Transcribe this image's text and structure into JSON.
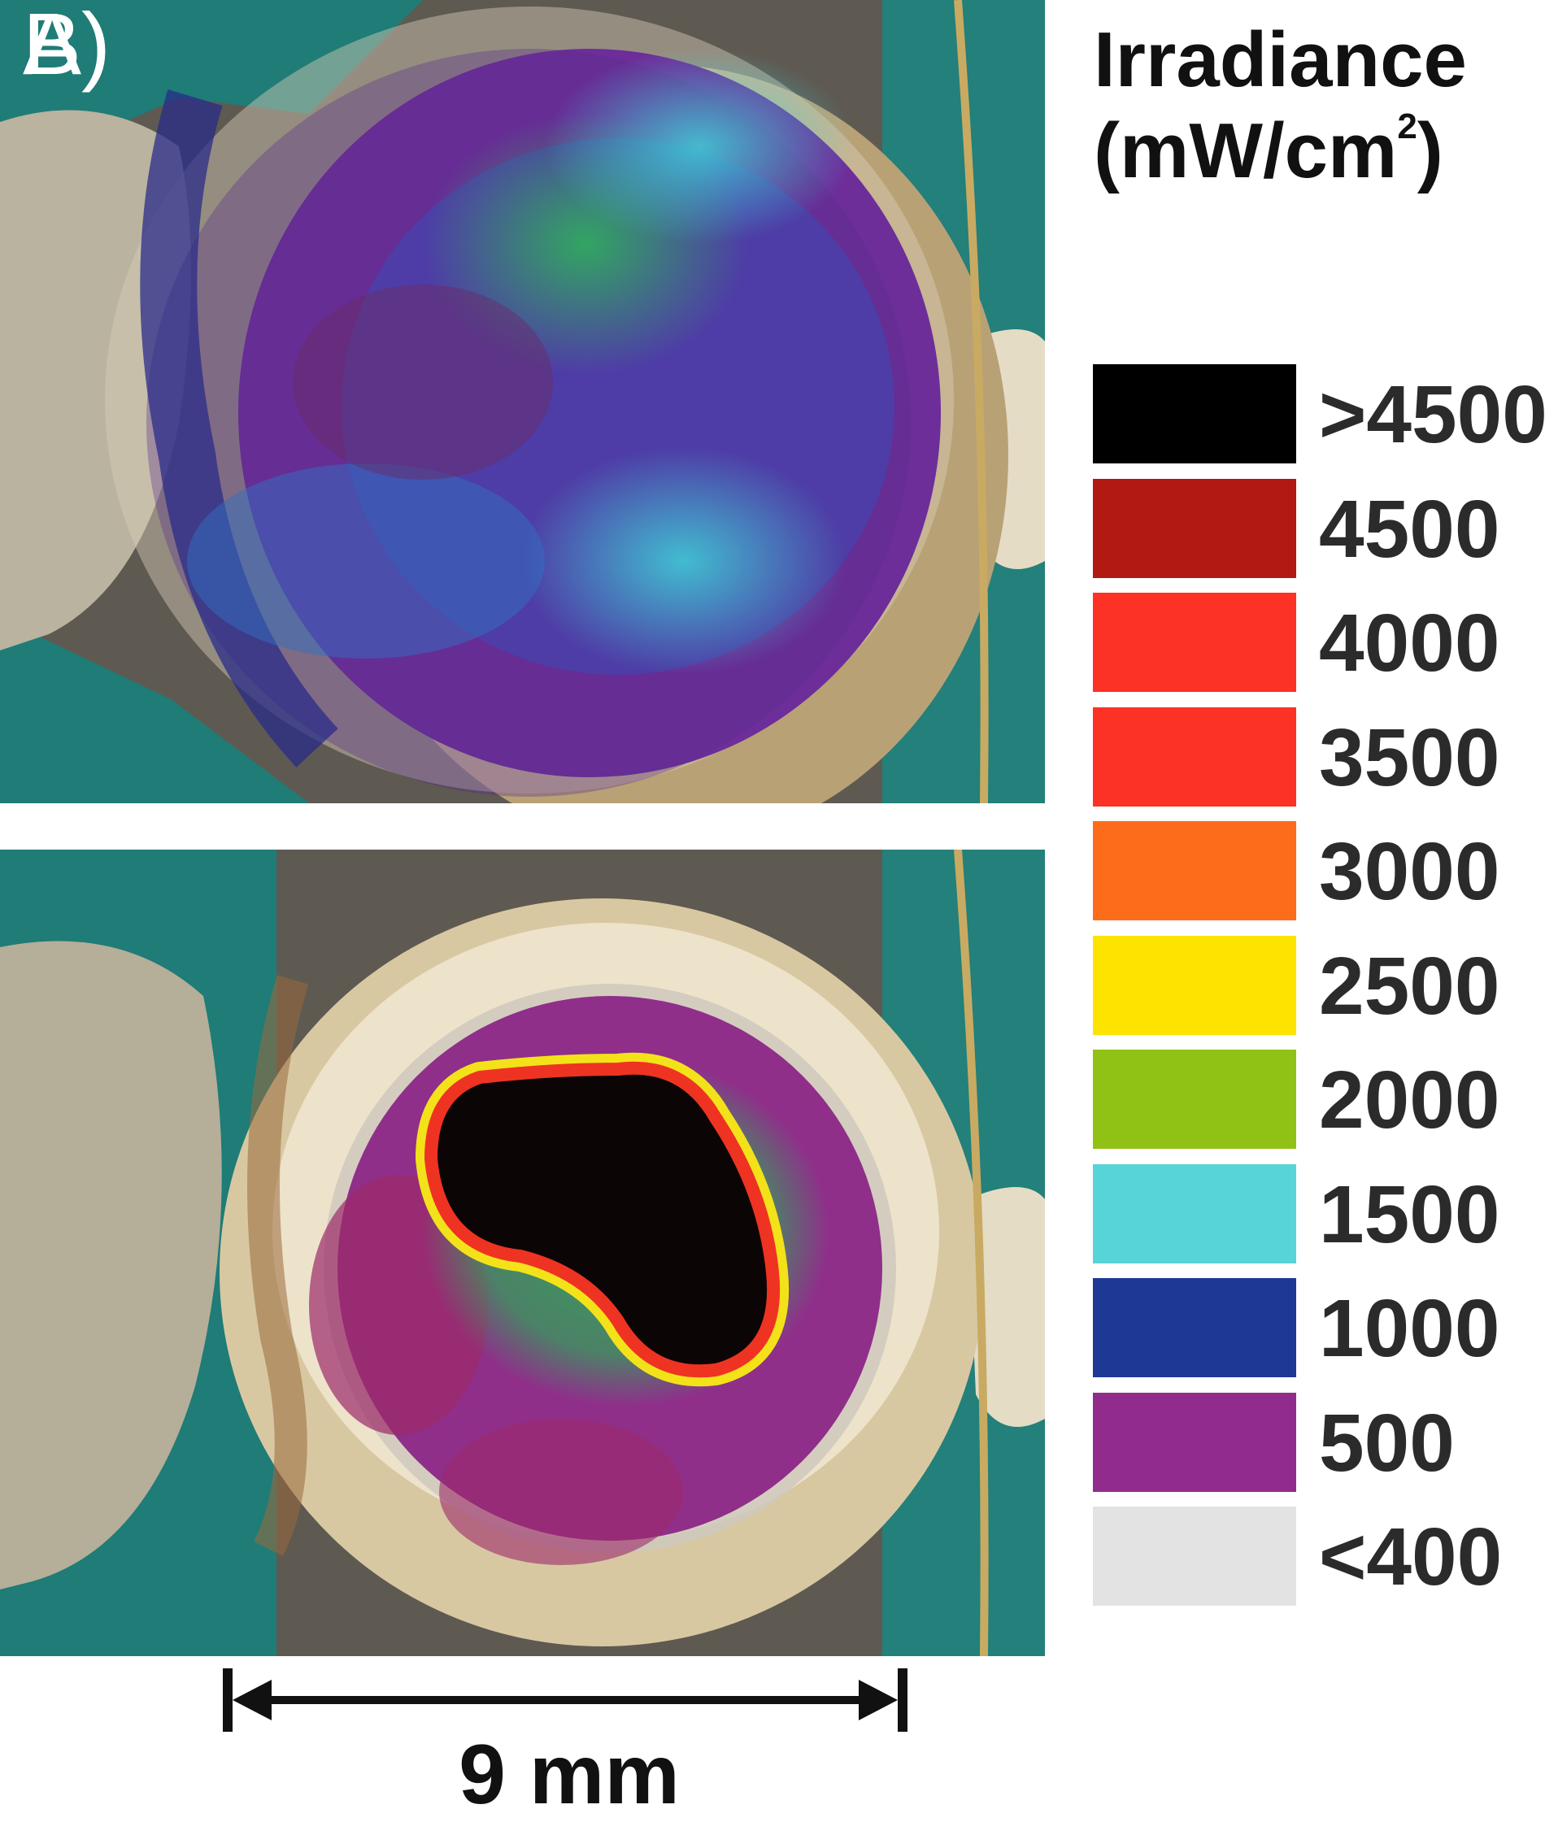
{
  "panels": {
    "a": {
      "label": "A)"
    },
    "b": {
      "label": "B)"
    }
  },
  "legend": {
    "title_line1": "Irradiance",
    "title_line2_pre": "(mW/cm",
    "title_line2_sup": "2",
    "title_line2_post": ")",
    "items": [
      {
        "label": ">4500",
        "color": "#000000"
      },
      {
        "label": "4500",
        "color": "#b01a12"
      },
      {
        "label": "4000",
        "color": "#fb3224"
      },
      {
        "label": "3500",
        "color": "#fb3224"
      },
      {
        "label": "3000",
        "color": "#fd6c1b"
      },
      {
        "label": "2500",
        "color": "#fde400"
      },
      {
        "label": "2000",
        "color": "#8fc214"
      },
      {
        "label": "1500",
        "color": "#57d4d6"
      },
      {
        "label": "1000",
        "color": "#1e3896"
      },
      {
        "label": "500",
        "color": "#912c8c"
      },
      {
        "label": "<400",
        "color": "#e3e3e3"
      }
    ]
  },
  "scale_bar": {
    "label": "9 mm"
  }
}
